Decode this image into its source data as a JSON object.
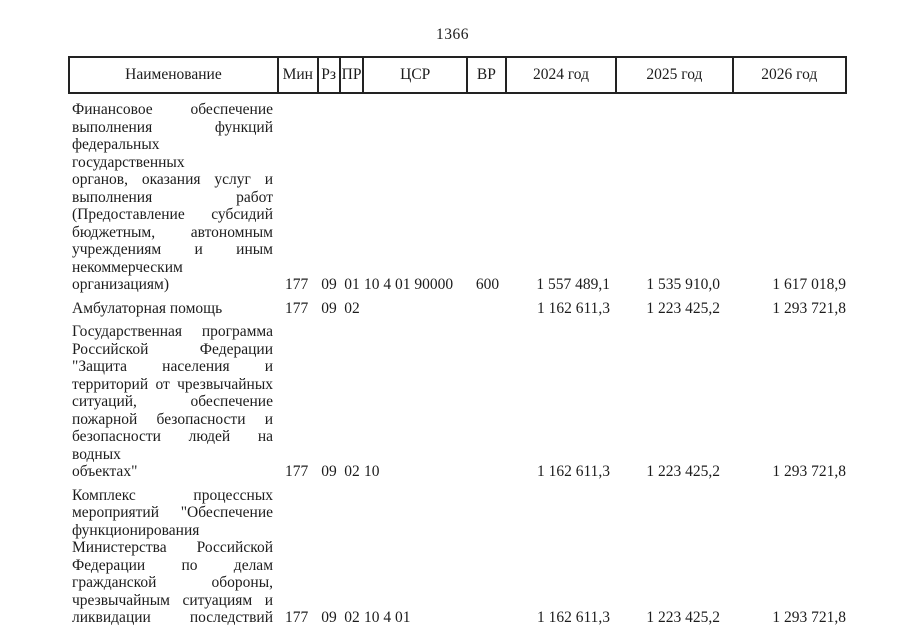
{
  "page": {
    "number": "1366"
  },
  "colors": {
    "text": "#1c1c1c",
    "border": "#222222",
    "background": "#ffffff"
  },
  "table": {
    "headers": [
      {
        "key": "name",
        "label": "Наименование"
      },
      {
        "key": "min",
        "label": "Мин"
      },
      {
        "key": "rz",
        "label": "Рз"
      },
      {
        "key": "pr",
        "label": "ПР"
      },
      {
        "key": "csr",
        "label": "ЦСР"
      },
      {
        "key": "vr",
        "label": "ВР"
      },
      {
        "key": "y2024",
        "label": "2024 год"
      },
      {
        "key": "y2025",
        "label": "2025 год"
      },
      {
        "key": "y2026",
        "label": "2026 год"
      }
    ],
    "rows": [
      {
        "name_lines": [
          "Финансовое обеспечение",
          "выполнения функций",
          "федеральных государственных",
          "органов, оказания услуг и",
          "выполнения работ",
          "(Предоставление субсидий",
          "бюджетным, автономным",
          "учреждениям и иным",
          "некоммерческим",
          "организациям)"
        ],
        "justify_last": false,
        "values": {
          "min": "177",
          "rz": "09",
          "pr": "01",
          "csr": "10 4 01 90000",
          "vr": "600",
          "y2024": "1 557 489,1",
          "y2025": "1 535 910,0",
          "y2026": "1 617 018,9"
        }
      },
      {
        "name_lines": [
          "Амбулаторная помощь"
        ],
        "justify_last": false,
        "values": {
          "min": "177",
          "rz": "09",
          "pr": "02",
          "csr": "",
          "vr": "",
          "y2024": "1 162 611,3",
          "y2025": "1 223 425,2",
          "y2026": "1 293 721,8"
        }
      },
      {
        "name_lines": [
          "Государственная программа",
          "Российской Федерации",
          "\"Защита населения и",
          "территорий от чрезвычайных",
          "ситуаций, обеспечение",
          "пожарной безопасности и",
          "безопасности людей на водных",
          "объектах\""
        ],
        "justify_last": false,
        "values": {
          "min": "177",
          "rz": "09",
          "pr": "02",
          "csr": "10",
          "vr": "",
          "y2024": "1 162 611,3",
          "y2025": "1 223 425,2",
          "y2026": "1 293 721,8"
        }
      },
      {
        "name_lines": [
          "Комплекс процессных",
          "мероприятий \"Обеспечение",
          "функционирования",
          "Министерства Российской",
          "Федерации по делам",
          "гражданской обороны,",
          "чрезвычайным ситуациям и",
          "ликвидации последствий"
        ],
        "justify_last": true,
        "values": {
          "min": "177",
          "rz": "09",
          "pr": "02",
          "csr": "10 4 01",
          "vr": "",
          "y2024": "1 162 611,3",
          "y2025": "1 223 425,2",
          "y2026": "1 293 721,8"
        }
      }
    ]
  }
}
